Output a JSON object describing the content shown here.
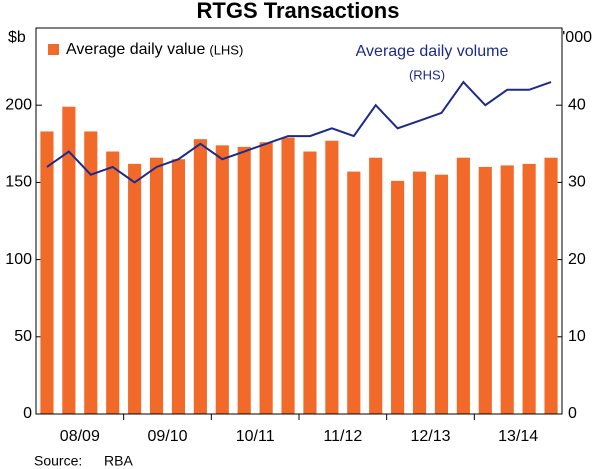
{
  "chart_data": {
    "type": "bar-line",
    "title": "RTGS Transactions",
    "y_unit": "$b",
    "y2_unit": "'000",
    "source_label": "Source:",
    "source": "RBA",
    "categories": [
      null,
      "08/09",
      null,
      null,
      null,
      "09/10",
      null,
      null,
      null,
      "10/11",
      null,
      null,
      null,
      "11/12",
      null,
      null,
      null,
      "12/13",
      null,
      null,
      null,
      "13/14",
      null,
      null
    ],
    "series": [
      {
        "name": "Average daily value",
        "annotation": "(LHS)",
        "color": "#f26a2a",
        "type": "bar",
        "values": [
          183,
          199,
          183,
          170,
          162,
          166,
          165,
          178,
          174,
          173,
          176,
          179,
          170,
          177,
          157,
          166,
          151,
          157,
          155,
          166,
          160,
          161,
          162,
          166
        ]
      },
      {
        "name": "Average daily volume",
        "annotation": "(RHS)",
        "color": "#1c2a8c",
        "type": "line",
        "axis": "y2",
        "values": [
          32,
          34,
          31,
          32,
          30,
          32,
          33,
          35,
          33,
          34,
          35,
          36,
          36,
          37,
          36,
          40,
          37,
          38,
          39,
          43,
          40,
          42,
          42,
          43
        ]
      }
    ],
    "ylim": [
      0,
      250
    ],
    "yticks": [
      0,
      50,
      100,
      150,
      200
    ],
    "y2lim": [
      0,
      50
    ],
    "y2ticks": [
      0,
      10,
      20,
      30,
      40
    ],
    "grid": false
  }
}
